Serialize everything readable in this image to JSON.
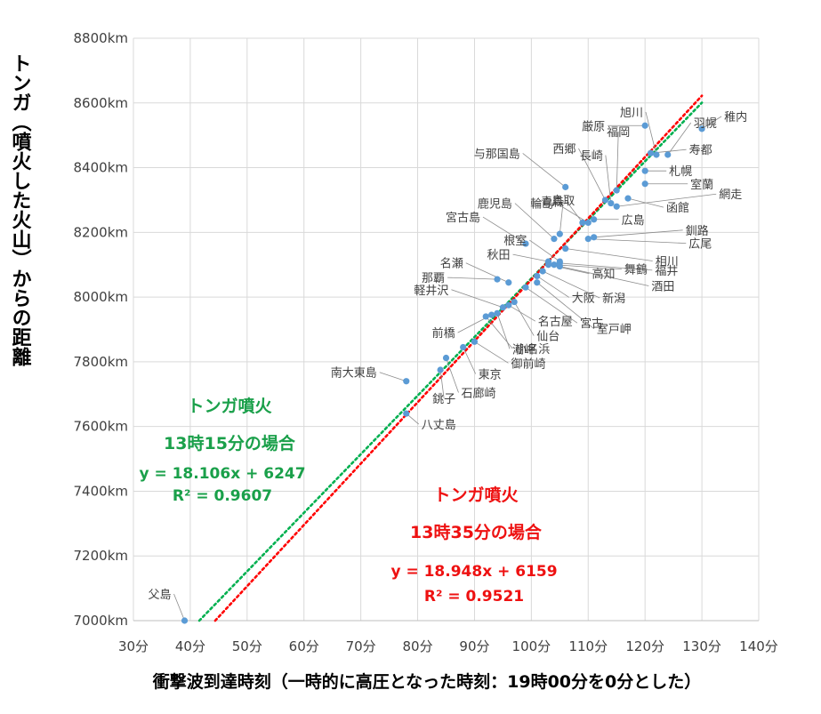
{
  "chart_data": {
    "type": "scatter",
    "xlabel": "衝撃波到達時刻（一時的に高圧となった時刻：19時00分を0分とした）",
    "ylabel": "トンガ（噴火した火山）からの距離",
    "xlim": [
      30,
      140
    ],
    "ylim": [
      7000,
      8800
    ],
    "x_ticks": [
      30,
      40,
      50,
      60,
      70,
      80,
      90,
      100,
      110,
      120,
      130,
      140
    ],
    "x_tick_labels": [
      "30分",
      "40分",
      "50分",
      "60分",
      "70分",
      "80分",
      "90分",
      "100分",
      "110分",
      "120分",
      "130分",
      "140分"
    ],
    "y_ticks": [
      7000,
      7200,
      7400,
      7600,
      7800,
      8000,
      8200,
      8400,
      8600,
      8800
    ],
    "y_tick_labels": [
      "7000km",
      "7200km",
      "7400km",
      "7600km",
      "7800km",
      "8000km",
      "8200km",
      "8400km",
      "8600km",
      "8800km"
    ],
    "grid": true,
    "points": [
      {
        "name": "父島",
        "x": 39,
        "y": 7000
      },
      {
        "name": "八丈島",
        "x": 78,
        "y": 7640
      },
      {
        "name": "南大東島",
        "x": 78,
        "y": 7740
      },
      {
        "name": "銚子",
        "x": 84,
        "y": 7775
      },
      {
        "name": "石廊崎",
        "x": 85,
        "y": 7812
      },
      {
        "name": "東京",
        "x": 88,
        "y": 7845
      },
      {
        "name": "御前崎",
        "x": 90,
        "y": 7862
      },
      {
        "name": "小名浜",
        "x": 92,
        "y": 7940
      },
      {
        "name": "前橋",
        "x": 93,
        "y": 7945
      },
      {
        "name": "潮岬",
        "x": 94,
        "y": 7950
      },
      {
        "name": "軽井沢",
        "x": 95,
        "y": 7968
      },
      {
        "name": "名古屋",
        "x": 96,
        "y": 7975
      },
      {
        "name": "仙台",
        "x": 97,
        "y": 7985
      },
      {
        "name": "那覇",
        "x": 94,
        "y": 8055
      },
      {
        "name": "名瀬",
        "x": 96,
        "y": 8045
      },
      {
        "name": "宮古",
        "x": 99,
        "y": 8030
      },
      {
        "name": "室戸岬",
        "x": 101,
        "y": 8045
      },
      {
        "name": "大阪",
        "x": 101,
        "y": 8065
      },
      {
        "name": "新潟",
        "x": 102,
        "y": 8080
      },
      {
        "name": "高知",
        "x": 103,
        "y": 8100
      },
      {
        "name": "秋田",
        "x": 103,
        "y": 8110
      },
      {
        "name": "舞鶴",
        "x": 104,
        "y": 8100
      },
      {
        "name": "酒田",
        "x": 105,
        "y": 8095
      },
      {
        "name": "福井",
        "x": 105,
        "y": 8105
      },
      {
        "name": "根室",
        "x": 105,
        "y": 8110
      },
      {
        "name": "相川",
        "x": 106,
        "y": 8150
      },
      {
        "name": "宮古島",
        "x": 99,
        "y": 8165
      },
      {
        "name": "鹿児島",
        "x": 104,
        "y": 8180
      },
      {
        "name": "鳥取",
        "x": 105,
        "y": 8195
      },
      {
        "name": "広尾",
        "x": 110,
        "y": 8180
      },
      {
        "name": "釧路",
        "x": 111,
        "y": 8185
      },
      {
        "name": "与那国島",
        "x": 106,
        "y": 8340
      },
      {
        "name": "青森",
        "x": 109,
        "y": 8230
      },
      {
        "name": "輪島",
        "x": 110,
        "y": 8230
      },
      {
        "name": "広島",
        "x": 111,
        "y": 8240
      },
      {
        "name": "西郷",
        "x": 113,
        "y": 8300
      },
      {
        "name": "長崎",
        "x": 114,
        "y": 8290
      },
      {
        "name": "福岡",
        "x": 115,
        "y": 8330
      },
      {
        "name": "網走",
        "x": 115,
        "y": 8280
      },
      {
        "name": "函館",
        "x": 117,
        "y": 8305
      },
      {
        "name": "室蘭",
        "x": 120,
        "y": 8350
      },
      {
        "name": "札幌",
        "x": 120,
        "y": 8390
      },
      {
        "name": "厳原",
        "x": 120,
        "y": 8530
      },
      {
        "name": "寿都",
        "x": 121,
        "y": 8445
      },
      {
        "name": "羽幌",
        "x": 124,
        "y": 8440
      },
      {
        "name": "旭川",
        "x": 122,
        "y": 8440
      },
      {
        "name": "稚内",
        "x": 130,
        "y": 8520
      }
    ],
    "trendlines": [
      {
        "name": "トンガ噴火 13時15分の場合",
        "slope": 18.106,
        "intercept": 6247,
        "r2": 0.9607,
        "color": "#00b050"
      },
      {
        "name": "トンガ噴火 13時35分の場合",
        "slope": 18.948,
        "intercept": 6159,
        "r2": 0.9521,
        "color": "#ff0000"
      }
    ],
    "annotations": {
      "green": {
        "title": "トンガ噴火",
        "subtitle": "13時15分の場合",
        "eq": "y = 18.106x + 6247",
        "r2": "R² = 0.9607",
        "color": "#1aa04a"
      },
      "red": {
        "title": "トンガ噴火",
        "subtitle": "13時35分の場合",
        "eq": "y = 18.948x + 6159",
        "r2": "R² = 0.9521",
        "color": "#ee1111"
      }
    },
    "point_color": "#5b9bd5"
  }
}
